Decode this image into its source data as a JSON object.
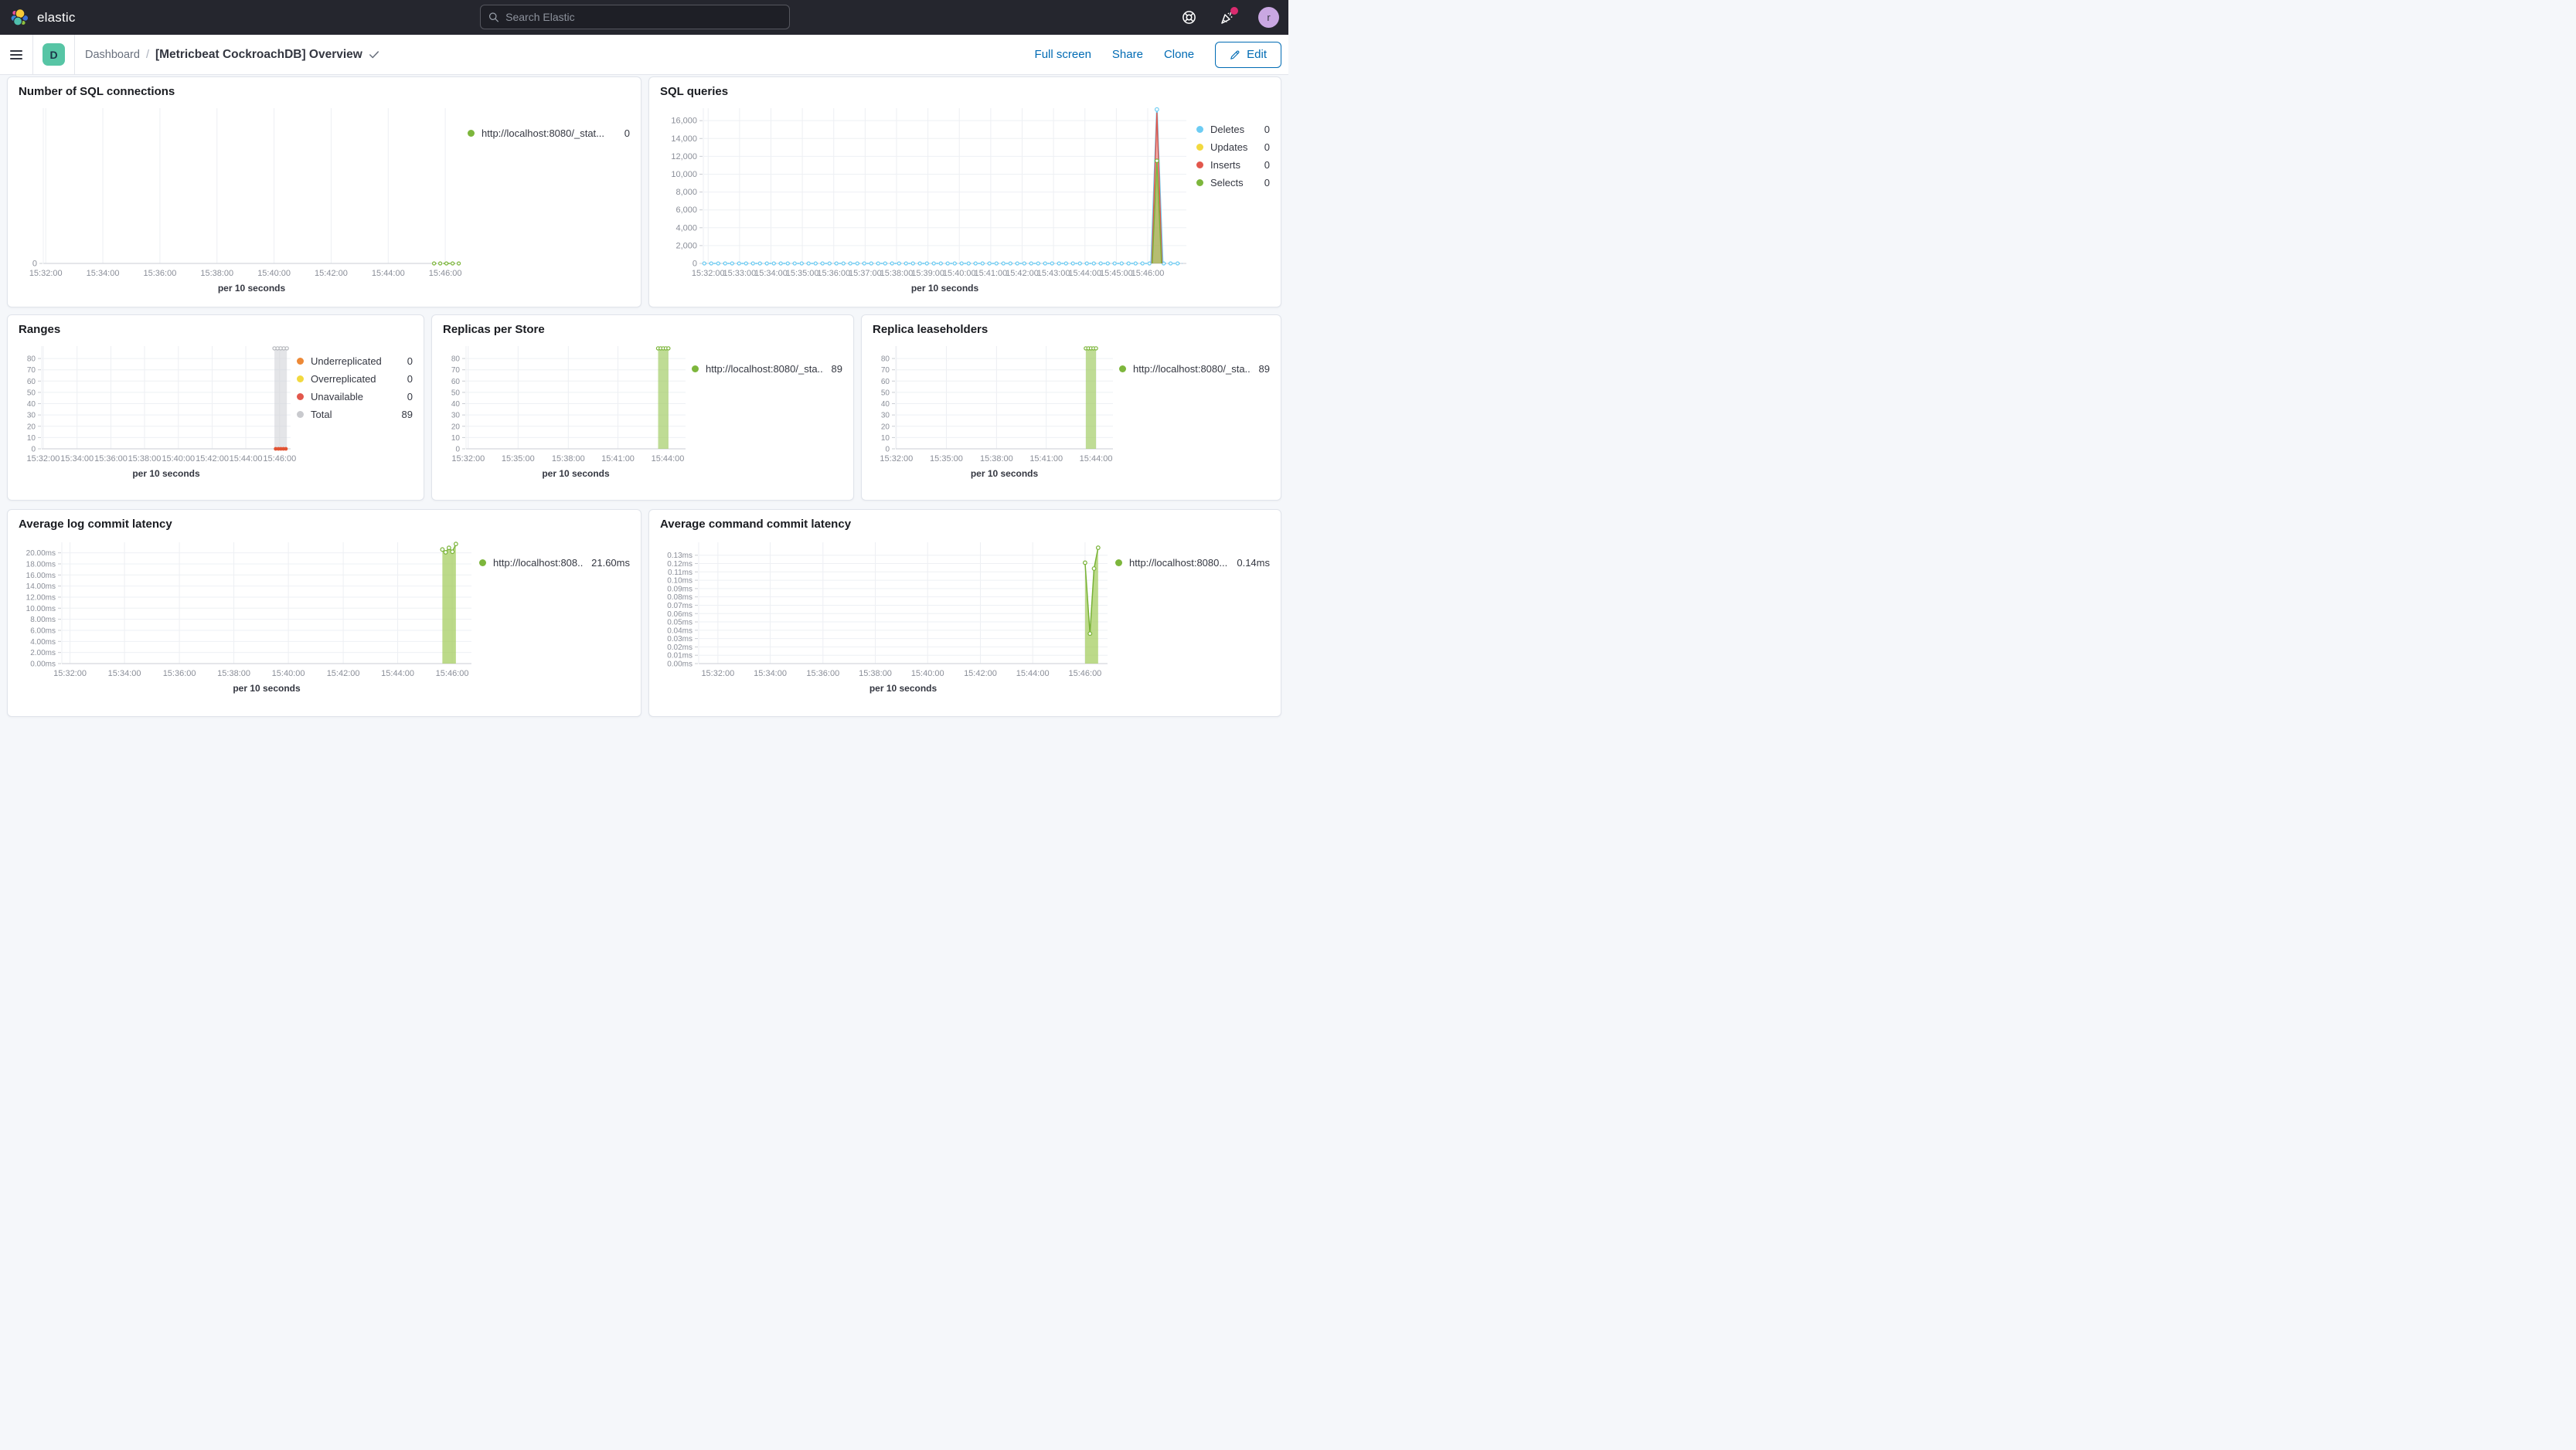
{
  "header": {
    "logo_text": "elastic",
    "search_placeholder": "Search Elastic",
    "avatar_initial": "r"
  },
  "toolbar": {
    "space_initial": "D",
    "breadcrumb_root": "Dashboard",
    "breadcrumb_sep": "/",
    "title": "[Metricbeat CockroachDB] Overview",
    "actions": [
      "Full screen",
      "Share",
      "Clone"
    ],
    "edit_label": "Edit"
  },
  "colors": {
    "green": "#7db63c",
    "blue": "#6dccf3",
    "yellow": "#f2d93f",
    "red": "#e2574c",
    "orange": "#ed8936",
    "gray": "#c9cace",
    "link_blue": "#006bb4",
    "accent_pink": "#db2b6f"
  },
  "panels": {
    "sql_connections": {
      "title": "Number of SQL connections",
      "legend": [
        {
          "color": "#7db63c",
          "label": "http://localhost:8080/_stat...",
          "value": "0"
        }
      ]
    },
    "sql_queries": {
      "title": "SQL queries",
      "legend": [
        {
          "color": "#6dccf3",
          "label": "Deletes",
          "value": "0"
        },
        {
          "color": "#f2d93f",
          "label": "Updates",
          "value": "0"
        },
        {
          "color": "#e2574c",
          "label": "Inserts",
          "value": "0"
        },
        {
          "color": "#7db63c",
          "label": "Selects",
          "value": "0"
        }
      ]
    },
    "ranges": {
      "title": "Ranges",
      "legend": [
        {
          "color": "#ed8936",
          "label": "Underreplicated",
          "value": "0"
        },
        {
          "color": "#f2d93f",
          "label": "Overreplicated",
          "value": "0"
        },
        {
          "color": "#e2574c",
          "label": "Unavailable",
          "value": "0"
        },
        {
          "color": "#c9cace",
          "label": "Total",
          "value": "89"
        }
      ]
    },
    "replicas_per_store": {
      "title": "Replicas per Store",
      "legend": [
        {
          "color": "#7db63c",
          "label": "http://localhost:8080/_sta...",
          "value": "89"
        }
      ]
    },
    "replica_leaseholders": {
      "title": "Replica leaseholders",
      "legend": [
        {
          "color": "#7db63c",
          "label": "http://localhost:8080/_sta...",
          "value": "89"
        }
      ]
    },
    "avg_log_commit": {
      "title": "Average log commit latency",
      "legend": [
        {
          "color": "#7db63c",
          "label": "http://localhost:808...",
          "value": "21.60ms"
        }
      ]
    },
    "avg_cmd_commit": {
      "title": "Average command commit latency",
      "legend": [
        {
          "color": "#7db63c",
          "label": "http://localhost:8080...",
          "value": "0.14ms"
        }
      ]
    }
  },
  "charts": {
    "sql_connections": {
      "type": "line",
      "xlabel": "per 10 seconds",
      "ylim": [
        0,
        1
      ],
      "m": {
        "l": 32,
        "r": 10,
        "t": 8,
        "b": 52
      },
      "yticks": [
        {
          "v": 0,
          "l": "0"
        }
      ],
      "xticks": [
        {
          "p": 0.006,
          "l": "15:32:00"
        },
        {
          "p": 0.143,
          "l": "15:34:00"
        },
        {
          "p": 0.28,
          "l": "15:36:00"
        },
        {
          "p": 0.417,
          "l": "15:38:00"
        },
        {
          "p": 0.554,
          "l": "15:40:00"
        },
        {
          "p": 0.691,
          "l": "15:42:00"
        },
        {
          "p": 0.828,
          "l": "15:44:00"
        },
        {
          "p": 0.965,
          "l": "15:46:00"
        }
      ],
      "series": [
        {
          "type": "line",
          "color": "#7db63c",
          "width": 1.4,
          "dashed": true,
          "markerSpacing": 8,
          "points": [
            [
              0.938,
              0
            ],
            [
              1.0,
              0
            ]
          ]
        }
      ]
    },
    "sql_queries": {
      "type": "line",
      "xlabel": "per 10 seconds",
      "ylim": [
        0,
        17400
      ],
      "m": {
        "l": 56,
        "r": 8,
        "t": 8,
        "b": 52
      },
      "yticks": [
        {
          "v": 0,
          "l": "0"
        },
        {
          "v": 2000,
          "l": "2,000"
        },
        {
          "v": 4000,
          "l": "4,000"
        },
        {
          "v": 6000,
          "l": "6,000"
        },
        {
          "v": 8000,
          "l": "8,000"
        },
        {
          "v": 10000,
          "l": "10,000"
        },
        {
          "v": 12000,
          "l": "12,000"
        },
        {
          "v": 14000,
          "l": "14,000"
        },
        {
          "v": 16000,
          "l": "16,000"
        }
      ],
      "xticks": [
        {
          "p": 0.01,
          "l": "15:32:00"
        },
        {
          "p": 0.075,
          "l": "15:33:00"
        },
        {
          "p": 0.14,
          "l": "15:34:00"
        },
        {
          "p": 0.205,
          "l": "15:35:00"
        },
        {
          "p": 0.27,
          "l": "15:36:00"
        },
        {
          "p": 0.335,
          "l": "15:37:00"
        },
        {
          "p": 0.4,
          "l": "15:38:00"
        },
        {
          "p": 0.465,
          "l": "15:39:00"
        },
        {
          "p": 0.53,
          "l": "15:40:00"
        },
        {
          "p": 0.595,
          "l": "15:41:00"
        },
        {
          "p": 0.66,
          "l": "15:42:00"
        },
        {
          "p": 0.725,
          "l": "15:43:00"
        },
        {
          "p": 0.79,
          "l": "15:44:00"
        },
        {
          "p": 0.855,
          "l": "15:45:00"
        },
        {
          "p": 0.92,
          "l": "15:46:00"
        }
      ],
      "series": [
        {
          "type": "line",
          "color": "#6dccf3",
          "width": 1.4,
          "dashed": true,
          "markerSpacing": 9,
          "points": [
            [
              0.002,
              0
            ],
            [
              0.925,
              0
            ]
          ]
        },
        {
          "type": "line",
          "color": "#6dccf3",
          "width": 1.4,
          "dashed": true,
          "markerSpacing": 9,
          "points": [
            [
              0.953,
              0
            ],
            [
              0.992,
              0
            ]
          ]
        },
        {
          "type": "line",
          "color": "#6dccf3",
          "width": 2,
          "points": [
            [
              0.927,
              0
            ],
            [
              0.939,
              17250
            ],
            [
              0.951,
              0
            ]
          ],
          "markers": [
            [
              0.939,
              17250
            ]
          ]
        },
        {
          "type": "area",
          "color": "#e2574c",
          "fill": "rgba(226,87,76,0.45)",
          "width": 1.4,
          "points": [
            [
              0.9285,
              0
            ],
            [
              0.939,
              16900
            ],
            [
              0.9495,
              0
            ]
          ]
        },
        {
          "type": "area",
          "color": "#79b43a",
          "fill": "rgba(141,195,71,0.6)",
          "width": 1.4,
          "points": [
            [
              0.9295,
              0
            ],
            [
              0.939,
              11500
            ],
            [
              0.9485,
              0
            ]
          ],
          "markers": [
            [
              0.939,
              11500
            ]
          ]
        }
      ]
    },
    "ranges": {
      "type": "bar",
      "xlabel": "per 10 seconds",
      "ylim": [
        0,
        91
      ],
      "m": {
        "l": 30,
        "r": 8,
        "t": 8,
        "b": 62
      },
      "yticks": [
        {
          "v": 0,
          "l": "0"
        },
        {
          "v": 10,
          "l": "10"
        },
        {
          "v": 20,
          "l": "20"
        },
        {
          "v": 30,
          "l": "30"
        },
        {
          "v": 40,
          "l": "40"
        },
        {
          "v": 50,
          "l": "50"
        },
        {
          "v": 60,
          "l": "60"
        },
        {
          "v": 70,
          "l": "70"
        },
        {
          "v": 80,
          "l": "80"
        }
      ],
      "ySize": "small",
      "xticks": [
        {
          "p": 0.006,
          "l": "15:32:00"
        },
        {
          "p": 0.142,
          "l": "15:34:00"
        },
        {
          "p": 0.278,
          "l": "15:36:00"
        },
        {
          "p": 0.413,
          "l": "15:38:00"
        },
        {
          "p": 0.549,
          "l": "15:40:00"
        },
        {
          "p": 0.685,
          "l": "15:42:00"
        },
        {
          "p": 0.82,
          "l": "15:44:00"
        },
        {
          "p": 0.956,
          "l": "15:46:00"
        }
      ],
      "series": [
        {
          "type": "bar",
          "x0": 0.935,
          "x1": 0.985,
          "val": 89,
          "fill": "rgba(210,212,216,0.6)",
          "mcolor": "#b6b8bd",
          "mcount": 5
        },
        {
          "type": "dots",
          "color": "#e25434",
          "points": [
            [
              0.94,
              0
            ],
            [
              0.951,
              0
            ],
            [
              0.961,
              0
            ],
            [
              0.971,
              0
            ],
            [
              0.981,
              0
            ]
          ]
        }
      ]
    },
    "replicas_per_store": {
      "type": "bar",
      "xlabel": "per 10 seconds",
      "ylim": [
        0,
        91
      ],
      "m": {
        "l": 30,
        "r": 8,
        "t": 8,
        "b": 62
      },
      "yticks": [
        {
          "v": 0,
          "l": "0"
        },
        {
          "v": 10,
          "l": "10"
        },
        {
          "v": 20,
          "l": "20"
        },
        {
          "v": 30,
          "l": "30"
        },
        {
          "v": 40,
          "l": "40"
        },
        {
          "v": 50,
          "l": "50"
        },
        {
          "v": 60,
          "l": "60"
        },
        {
          "v": 70,
          "l": "70"
        },
        {
          "v": 80,
          "l": "80"
        }
      ],
      "ySize": "small",
      "xticks": [
        {
          "p": 0.01,
          "l": "15:32:00"
        },
        {
          "p": 0.237,
          "l": "15:35:00"
        },
        {
          "p": 0.466,
          "l": "15:38:00"
        },
        {
          "p": 0.692,
          "l": "15:41:00"
        },
        {
          "p": 0.919,
          "l": "15:44:00"
        }
      ],
      "series": [
        {
          "type": "bar",
          "x0": 0.875,
          "x1": 0.922,
          "val": 89,
          "fill": "rgba(157,202,92,0.65)",
          "mcolor": "#7db63c",
          "mcount": 5
        }
      ]
    },
    "replica_leaseholders": {
      "type": "bar",
      "xlabel": "per 10 seconds",
      "ylim": [
        0,
        91
      ],
      "m": {
        "l": 30,
        "r": 8,
        "t": 8,
        "b": 62
      },
      "yticks": [
        {
          "v": 0,
          "l": "0"
        },
        {
          "v": 10,
          "l": "10"
        },
        {
          "v": 20,
          "l": "20"
        },
        {
          "v": 30,
          "l": "30"
        },
        {
          "v": 40,
          "l": "40"
        },
        {
          "v": 50,
          "l": "50"
        },
        {
          "v": 60,
          "l": "60"
        },
        {
          "v": 70,
          "l": "70"
        },
        {
          "v": 80,
          "l": "80"
        }
      ],
      "ySize": "small",
      "xticks": [
        {
          "p": 0.003,
          "l": "15:32:00"
        },
        {
          "p": 0.233,
          "l": "15:35:00"
        },
        {
          "p": 0.464,
          "l": "15:38:00"
        },
        {
          "p": 0.693,
          "l": "15:41:00"
        },
        {
          "p": 0.922,
          "l": "15:44:00"
        }
      ],
      "series": [
        {
          "type": "bar",
          "x0": 0.875,
          "x1": 0.922,
          "val": 89,
          "fill": "rgba(157,202,92,0.65)",
          "mcolor": "#7db63c",
          "mcount": 5
        }
      ]
    },
    "avg_log_commit": {
      "type": "area",
      "xlabel": "per 10 seconds",
      "ylim": [
        0,
        21.9
      ],
      "m": {
        "l": 56,
        "r": 10,
        "t": 10,
        "b": 64
      },
      "yticks": [
        {
          "v": 0,
          "l": "0.00ms"
        },
        {
          "v": 2,
          "l": "2.00ms"
        },
        {
          "v": 4,
          "l": "4.00ms"
        },
        {
          "v": 6,
          "l": "6.00ms"
        },
        {
          "v": 8,
          "l": "8.00ms"
        },
        {
          "v": 10,
          "l": "10.00ms"
        },
        {
          "v": 12,
          "l": "12.00ms"
        },
        {
          "v": 14,
          "l": "14.00ms"
        },
        {
          "v": 16,
          "l": "16.00ms"
        },
        {
          "v": 18,
          "l": "18.00ms"
        },
        {
          "v": 20,
          "l": "20.00ms"
        }
      ],
      "ySize": "small",
      "xticks": [
        {
          "p": 0.02,
          "l": "15:32:00"
        },
        {
          "p": 0.153,
          "l": "15:34:00"
        },
        {
          "p": 0.287,
          "l": "15:36:00"
        },
        {
          "p": 0.42,
          "l": "15:38:00"
        },
        {
          "p": 0.553,
          "l": "15:40:00"
        },
        {
          "p": 0.687,
          "l": "15:42:00"
        },
        {
          "p": 0.82,
          "l": "15:44:00"
        },
        {
          "p": 0.953,
          "l": "15:46:00"
        }
      ],
      "series": [
        {
          "type": "area",
          "color": "#78b236",
          "fill": "rgba(165,206,98,0.75)",
          "width": 1.5,
          "markers": true,
          "points": [
            [
              0.929,
              20.6
            ],
            [
              0.937,
              20.1
            ],
            [
              0.945,
              20.9
            ],
            [
              0.9535,
              20.2
            ],
            [
              0.962,
              21.6
            ]
          ]
        }
      ]
    },
    "avg_cmd_commit": {
      "type": "area",
      "xlabel": "per 10 seconds",
      "ylim": [
        0,
        0.1455
      ],
      "m": {
        "l": 50,
        "r": 10,
        "t": 10,
        "b": 64
      },
      "yticks": [
        {
          "v": 0.0,
          "l": "0.00ms"
        },
        {
          "v": 0.01,
          "l": "0.01ms"
        },
        {
          "v": 0.02,
          "l": "0.02ms"
        },
        {
          "v": 0.03,
          "l": "0.03ms"
        },
        {
          "v": 0.04,
          "l": "0.04ms"
        },
        {
          "v": 0.05,
          "l": "0.05ms"
        },
        {
          "v": 0.06,
          "l": "0.06ms"
        },
        {
          "v": 0.07,
          "l": "0.07ms"
        },
        {
          "v": 0.08,
          "l": "0.08ms"
        },
        {
          "v": 0.09,
          "l": "0.09ms"
        },
        {
          "v": 0.1,
          "l": "0.10ms"
        },
        {
          "v": 0.11,
          "l": "0.11ms"
        },
        {
          "v": 0.12,
          "l": "0.12ms"
        },
        {
          "v": 0.13,
          "l": "0.13ms"
        }
      ],
      "ySize": "small",
      "xticks": [
        {
          "p": 0.047,
          "l": "15:32:00"
        },
        {
          "p": 0.175,
          "l": "15:34:00"
        },
        {
          "p": 0.304,
          "l": "15:36:00"
        },
        {
          "p": 0.432,
          "l": "15:38:00"
        },
        {
          "p": 0.56,
          "l": "15:40:00"
        },
        {
          "p": 0.689,
          "l": "15:42:00"
        },
        {
          "p": 0.817,
          "l": "15:44:00"
        },
        {
          "p": 0.945,
          "l": "15:46:00"
        }
      ],
      "series": [
        {
          "type": "area",
          "color": "#78b236",
          "fill": "rgba(165,206,98,0.75)",
          "width": 1.5,
          "markers": true,
          "points": [
            [
              0.945,
              0.121
            ],
            [
              0.957,
              0.036
            ],
            [
              0.967,
              0.114
            ],
            [
              0.977,
              0.139
            ]
          ]
        }
      ]
    }
  }
}
